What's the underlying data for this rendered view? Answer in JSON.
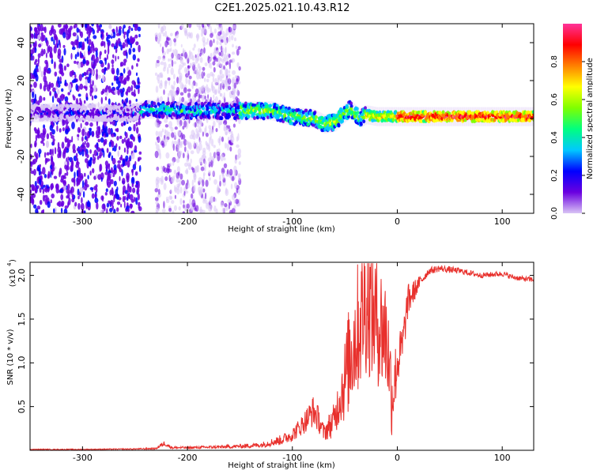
{
  "title": "C2E1.2025.021.10.43.R12",
  "chart_data": [
    {
      "type": "heatmap",
      "xlabel": "Height of straight line (km)",
      "ylabel": "Frequency (Hz)",
      "xlim": [
        -350,
        130
      ],
      "ylim": [
        -50,
        50
      ],
      "xticks": [
        -300,
        -200,
        -100,
        0,
        100
      ],
      "yticks": [
        -40,
        -20,
        0,
        20,
        40
      ],
      "colorbar": {
        "label": "Normalized spectral amplitude",
        "range": [
          0,
          1
        ],
        "ticks": [
          "0.0",
          "0.2",
          "0.4",
          "0.6",
          "0.8"
        ],
        "colors": [
          "#d9c4f5",
          "#6a00e0",
          "#0000ff",
          "#00c8ff",
          "#00ff80",
          "#7fff00",
          "#ffff00",
          "#ff8000",
          "#ff0000",
          "#ff3399"
        ]
      },
      "ridge": {
        "x": [
          -350,
          -300,
          -250,
          -240,
          -200,
          -150,
          -120,
          -100,
          -80,
          -70,
          -60,
          -50,
          -45,
          -40,
          -35,
          -30,
          -20,
          -10,
          0,
          20,
          40,
          60,
          80,
          100,
          120,
          130
        ],
        "y": [
          3,
          3,
          3,
          5,
          4,
          4,
          4,
          1,
          0,
          -3,
          -2,
          3,
          5,
          2,
          0,
          2,
          1,
          1,
          1,
          1,
          1,
          1,
          1,
          1,
          1,
          1
        ]
      },
      "noise_region_km": [
        -350,
        -150
      ],
      "dropout_km": [
        -245,
        -230
      ]
    },
    {
      "type": "line",
      "xlabel": "Height of straight line (km)",
      "ylabel": "SNR (10 * v/v)",
      "multiplier_label": "(x10",
      "multiplier_exp": "4",
      "xlim": [
        -350,
        130
      ],
      "ylim": [
        0,
        2.15
      ],
      "xticks": [
        -300,
        -200,
        -100,
        0,
        100
      ],
      "yticks": [
        "0.5",
        "1.0",
        "1.5",
        "2.0"
      ],
      "color": "#e8302c",
      "series": [
        {
          "x": [
            -350,
            -300,
            -250,
            -230,
            -222,
            -215,
            -200,
            -160,
            -130,
            -110,
            -100,
            -90,
            -80,
            -75,
            -70,
            -60,
            -55,
            -50,
            -45,
            -40,
            -35,
            -30,
            -25,
            -20,
            -15,
            -10,
            -7,
            -5,
            0,
            5,
            10,
            20,
            30,
            40,
            60,
            80,
            100,
            110,
            120,
            130
          ],
          "y": [
            0.01,
            0.01,
            0.015,
            0.02,
            0.08,
            0.03,
            0.03,
            0.04,
            0.06,
            0.12,
            0.18,
            0.3,
            0.45,
            0.35,
            0.2,
            0.35,
            0.6,
            0.8,
            1.1,
            1.3,
            1.5,
            1.7,
            1.6,
            1.5,
            1.4,
            1.3,
            0.9,
            0.6,
            1.0,
            1.2,
            1.7,
            1.9,
            2.05,
            2.08,
            2.05,
            2.0,
            2.02,
            1.98,
            1.96,
            1.95
          ],
          "noise_amplitude": [
            0.005,
            0.005,
            0.006,
            0.01,
            0.03,
            0.015,
            0.015,
            0.02,
            0.03,
            0.06,
            0.08,
            0.12,
            0.18,
            0.15,
            0.1,
            0.2,
            0.3,
            0.5,
            0.65,
            0.75,
            0.8,
            0.85,
            0.8,
            0.75,
            0.75,
            0.7,
            0.5,
            0.5,
            0.3,
            0.25,
            0.2,
            0.08,
            0.04,
            0.04,
            0.035,
            0.03,
            0.03,
            0.03,
            0.03,
            0.03
          ]
        }
      ]
    }
  ]
}
